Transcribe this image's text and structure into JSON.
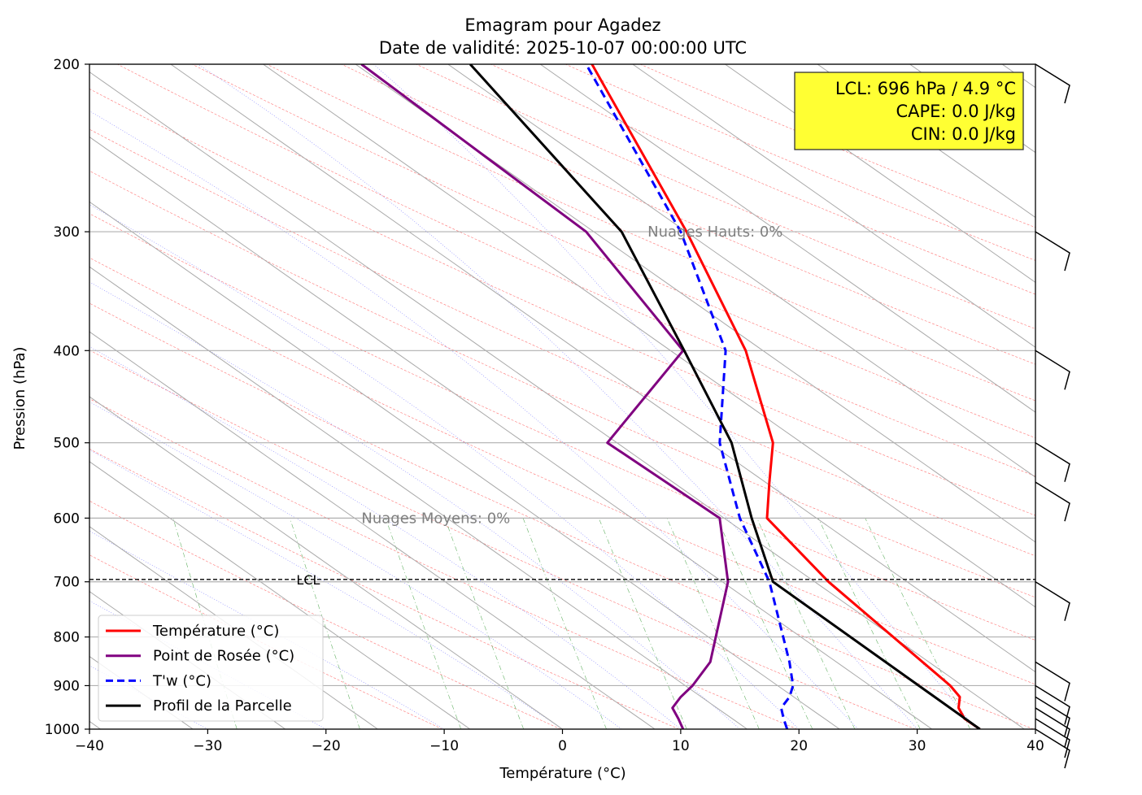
{
  "chart_data": {
    "type": "line",
    "title": "Emagram pour Agadez",
    "subtitle": "Date de validité: 2025-10-07 00:00:00 UTC",
    "xlabel": "Température (°C)",
    "ylabel": "Pression (hPa)",
    "xlim": [
      -40,
      40
    ],
    "ylim": [
      1000,
      200
    ],
    "yscale": "log",
    "grid": true,
    "x_ticks": [
      "−40",
      "−30",
      "−20",
      "−10",
      "0",
      "10",
      "20",
      "30",
      "40"
    ],
    "x_tick_values": [
      -40,
      -30,
      -20,
      -10,
      0,
      10,
      20,
      30,
      40
    ],
    "y_ticks": [
      "1000",
      "900",
      "800",
      "700",
      "600",
      "500",
      "400",
      "300",
      "200"
    ],
    "y_tick_values": [
      1000,
      900,
      800,
      700,
      600,
      500,
      400,
      300,
      200
    ],
    "legend_position": "lower-left",
    "series": [
      {
        "name": "Température (°C)",
        "color": "#ff0000",
        "style": "solid",
        "points": [
          [
            35.3,
            1000
          ],
          [
            34.0,
            975
          ],
          [
            33.5,
            950
          ],
          [
            33.6,
            925
          ],
          [
            32.8,
            900
          ],
          [
            22.5,
            700
          ],
          [
            17.3,
            600
          ],
          [
            17.5,
            550
          ],
          [
            17.8,
            500
          ],
          [
            15.5,
            400
          ],
          [
            10.5,
            300
          ],
          [
            2.5,
            200
          ]
        ]
      },
      {
        "name": "Point de Rosée (°C)",
        "color": "#800080",
        "style": "solid",
        "points": [
          [
            10.2,
            1000
          ],
          [
            9.8,
            975
          ],
          [
            9.3,
            950
          ],
          [
            10.0,
            925
          ],
          [
            11.0,
            900
          ],
          [
            12.5,
            850
          ],
          [
            14.0,
            700
          ],
          [
            13.3,
            600
          ],
          [
            3.8,
            500
          ],
          [
            10.2,
            400
          ],
          [
            2.0,
            300
          ],
          [
            -17.0,
            200
          ]
        ]
      },
      {
        "name": "T'w (°C)",
        "color": "#0000ff",
        "style": "dashed",
        "points": [
          [
            19.0,
            1000
          ],
          [
            18.7,
            975
          ],
          [
            18.5,
            950
          ],
          [
            19.2,
            925
          ],
          [
            19.5,
            900
          ],
          [
            19.2,
            850
          ],
          [
            17.5,
            700
          ],
          [
            15.0,
            600
          ],
          [
            13.3,
            500
          ],
          [
            13.8,
            400
          ],
          [
            10.0,
            300
          ],
          [
            2.0,
            200
          ]
        ]
      },
      {
        "name": "Profil de la Parcelle",
        "color": "#000000",
        "style": "solid",
        "points": [
          [
            35.3,
            1000
          ],
          [
            17.8,
            700
          ],
          [
            16.0,
            600
          ],
          [
            14.3,
            500
          ],
          [
            10.3,
            400
          ],
          [
            5.0,
            300
          ],
          [
            -7.8,
            200
          ]
        ]
      }
    ],
    "lcl_line": {
      "pressure": 696,
      "label": "LCL"
    },
    "annotations": [
      {
        "text": "Nuages Hauts: 0%",
        "x": 7.2,
        "pressure": 300
      },
      {
        "text": "Nuages Moyens: 0%",
        "x": -17.0,
        "pressure": 600
      }
    ],
    "info_box": {
      "lines": [
        "LCL: 696 hPa / 4.9 °C",
        "CAPE: 0.0 J/kg",
        "CIN: 0.0 J/kg"
      ],
      "background": "#ffff33"
    },
    "wind_barbs_pressures": [
      200,
      300,
      400,
      500,
      550,
      700,
      850,
      900,
      925,
      950,
      975,
      1000
    ]
  }
}
